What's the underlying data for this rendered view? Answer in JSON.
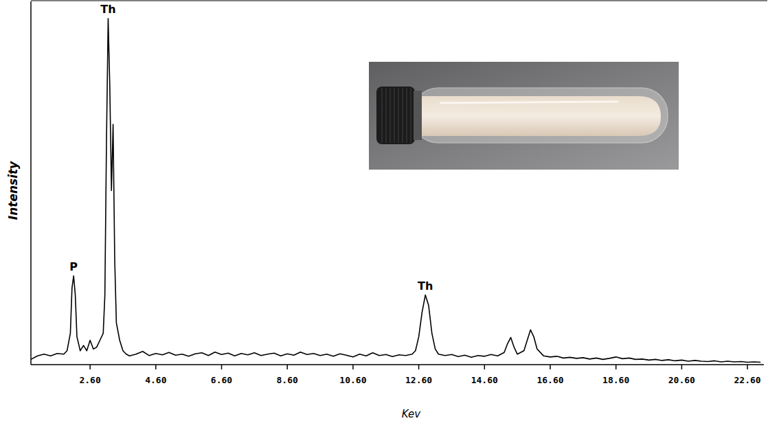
{
  "chart_data": {
    "type": "line",
    "xlabel": "Kev",
    "ylabel": "Intensity",
    "color": "#000000",
    "x": [
      0.8,
      1.0,
      1.2,
      1.4,
      1.6,
      1.8,
      1.9,
      2.0,
      2.05,
      2.1,
      2.15,
      2.2,
      2.3,
      2.4,
      2.5,
      2.6,
      2.7,
      2.8,
      2.9,
      3.0,
      3.05,
      3.1,
      3.15,
      3.2,
      3.25,
      3.3,
      3.35,
      3.4,
      3.5,
      3.6,
      3.7,
      3.8,
      4.0,
      4.2,
      4.4,
      4.6,
      4.8,
      5.0,
      5.2,
      5.4,
      5.6,
      5.8,
      6.0,
      6.2,
      6.4,
      6.6,
      6.8,
      7.0,
      7.2,
      7.4,
      7.6,
      7.8,
      8.0,
      8.2,
      8.4,
      8.6,
      8.8,
      9.0,
      9.2,
      9.4,
      9.6,
      9.8,
      10.0,
      10.2,
      10.4,
      10.6,
      10.8,
      11.0,
      11.2,
      11.4,
      11.6,
      11.8,
      12.0,
      12.2,
      12.4,
      12.5,
      12.6,
      12.7,
      12.8,
      12.9,
      13.0,
      13.1,
      13.2,
      13.4,
      13.6,
      13.8,
      14.0,
      14.2,
      14.4,
      14.6,
      14.8,
      15.0,
      15.2,
      15.3,
      15.4,
      15.5,
      15.6,
      15.8,
      15.9,
      16.0,
      16.1,
      16.2,
      16.4,
      16.6,
      16.8,
      17.0,
      17.2,
      17.4,
      17.6,
      17.8,
      18.0,
      18.2,
      18.4,
      18.6,
      18.8,
      19.0,
      19.2,
      19.4,
      19.6,
      19.8,
      20.0,
      20.2,
      20.4,
      20.6,
      20.8,
      21.0,
      21.2,
      21.4,
      21.6,
      21.8,
      22.0,
      22.2,
      22.4,
      22.6,
      22.8,
      23.0
    ],
    "values": [
      1.5,
      2.5,
      3.0,
      2.5,
      3.2,
      3.0,
      4.0,
      9,
      22,
      25.5,
      20,
      8,
      4,
      5.5,
      4,
      7,
      4.5,
      5,
      7,
      9,
      20,
      65,
      99.4,
      80,
      50,
      69,
      30,
      12,
      7,
      4,
      3,
      2.5,
      3.0,
      3.8,
      2.6,
      3.2,
      2.8,
      3.5,
      2.7,
      3.0,
      2.4,
      3.1,
      3.4,
      2.6,
      3.6,
      2.9,
      3.3,
      2.5,
      3.2,
      2.8,
      3.4,
      2.6,
      3.0,
      3.3,
      2.5,
      3.1,
      2.7,
      3.6,
      2.9,
      3.2,
      2.6,
      3.0,
      2.4,
      3.1,
      2.7,
      2.2,
      3.0,
      2.5,
      3.4,
      2.6,
      2.9,
      2.3,
      2.8,
      2.6,
      3.0,
      4,
      8,
      15,
      20,
      17,
      9,
      4.5,
      3,
      2.6,
      2.9,
      2.3,
      2.7,
      2.1,
      2.6,
      2.4,
      2.9,
      2.5,
      3.5,
      6,
      7.8,
      5,
      3,
      4,
      7,
      10,
      8,
      4.5,
      2.5,
      2.2,
      2.4,
      1.9,
      2.1,
      1.8,
      2.0,
      1.6,
      1.9,
      1.5,
      1.8,
      2.2,
      1.7,
      1.9,
      1.5,
      1.6,
      1.3,
      1.5,
      1.2,
      1.4,
      1.1,
      1.3,
      1.0,
      1.2,
      1.0,
      0.9,
      1.1,
      0.8,
      1.0,
      0.8,
      0.9,
      0.7,
      0.8,
      0.7
    ],
    "xlim": [
      0.8,
      23.1
    ],
    "xticks": [
      {
        "value": 2.6,
        "label": "2.60"
      },
      {
        "value": 4.6,
        "label": "4.60"
      },
      {
        "value": 6.6,
        "label": "6.60"
      },
      {
        "value": 8.6,
        "label": "8.60"
      },
      {
        "value": 10.6,
        "label": "10.60"
      },
      {
        "value": 12.6,
        "label": "12.60"
      },
      {
        "value": 14.6,
        "label": "14.60"
      },
      {
        "value": 16.6,
        "label": "16.60"
      },
      {
        "value": 18.6,
        "label": "18.60"
      },
      {
        "value": 20.6,
        "label": "20.60"
      },
      {
        "value": 22.6,
        "label": "22.60"
      }
    ],
    "ylim": [
      0,
      100
    ],
    "tick_labels": "x",
    "grid": false,
    "annotations": [
      {
        "text": "P",
        "x": 2.1,
        "y": 25.5
      },
      {
        "text": "Th",
        "x": 3.15,
        "y": 99.4
      },
      {
        "text": "Th",
        "x": 12.8,
        "y": 20
      }
    ]
  }
}
